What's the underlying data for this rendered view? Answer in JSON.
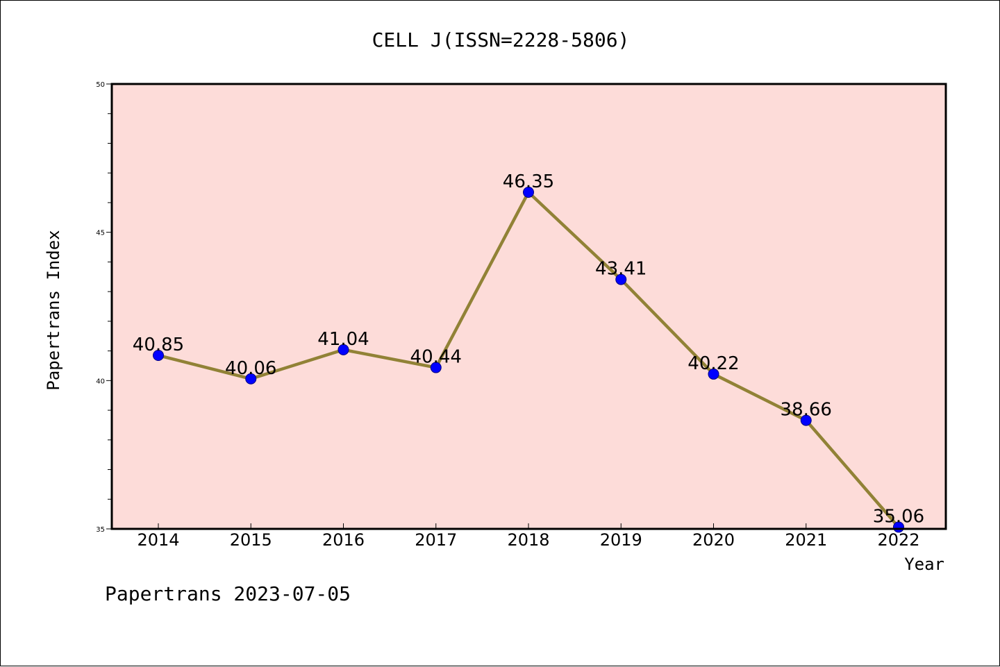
{
  "chart_data": {
    "type": "line",
    "title": "CELL J(ISSN=2228-5806)",
    "xlabel": "Year",
    "ylabel": "Papertrans Index",
    "categories": [
      "2014",
      "2015",
      "2016",
      "2017",
      "2018",
      "2019",
      "2020",
      "2021",
      "2022"
    ],
    "series": [
      {
        "values": [
          40.85,
          40.06,
          41.04,
          40.44,
          46.35,
          43.41,
          40.22,
          38.66,
          35.06
        ],
        "data_labels": [
          "40.85",
          "40.06",
          "41.04",
          "40.44",
          "46.35",
          "43.41",
          "40.22",
          "38.66",
          "35.06"
        ]
      }
    ],
    "ylim": [
      35,
      50
    ],
    "yticks": [
      35,
      40,
      45,
      50
    ],
    "ytick_labels": [
      "35",
      "40",
      "45",
      "50"
    ],
    "grid": false,
    "colors": {
      "plot_background": "#fddcd9",
      "line": "#918236",
      "marker": "#0000ff",
      "marker_edge": "#000080"
    }
  },
  "footer": {
    "text": "Papertrans 2023-07-05"
  }
}
